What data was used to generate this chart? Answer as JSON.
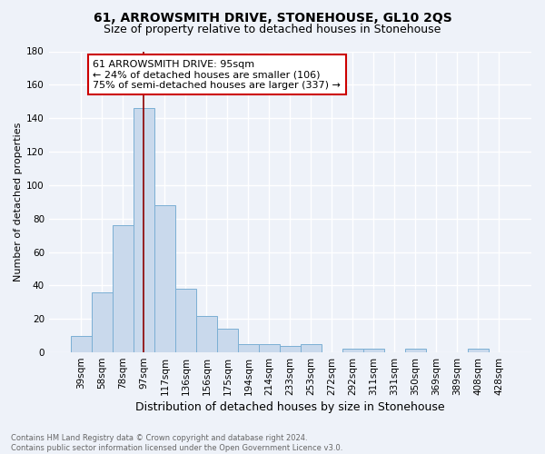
{
  "title": "61, ARROWSMITH DRIVE, STONEHOUSE, GL10 2QS",
  "subtitle": "Size of property relative to detached houses in Stonehouse",
  "xlabel": "Distribution of detached houses by size in Stonehouse",
  "ylabel": "Number of detached properties",
  "categories": [
    "39sqm",
    "58sqm",
    "78sqm",
    "97sqm",
    "117sqm",
    "136sqm",
    "156sqm",
    "175sqm",
    "194sqm",
    "214sqm",
    "233sqm",
    "253sqm",
    "272sqm",
    "292sqm",
    "311sqm",
    "331sqm",
    "350sqm",
    "369sqm",
    "389sqm",
    "408sqm",
    "428sqm"
  ],
  "values": [
    10,
    36,
    76,
    146,
    88,
    38,
    22,
    14,
    5,
    5,
    4,
    5,
    0,
    2,
    2,
    0,
    2,
    0,
    0,
    2,
    0
  ],
  "bar_color": "#c9d9ec",
  "bar_edge_color": "#7bafd4",
  "background_color": "#eef2f9",
  "grid_color": "#ffffff",
  "vline_x": 3.0,
  "vline_color": "#8b0000",
  "annotation_text": "61 ARROWSMITH DRIVE: 95sqm\n← 24% of detached houses are smaller (106)\n75% of semi-detached houses are larger (337) →",
  "annotation_box_color": "#ffffff",
  "annotation_box_edge_color": "#cc0000",
  "ylim": [
    0,
    180
  ],
  "yticks": [
    0,
    20,
    40,
    60,
    80,
    100,
    120,
    140,
    160,
    180
  ],
  "footnote": "Contains HM Land Registry data © Crown copyright and database right 2024.\nContains public sector information licensed under the Open Government Licence v3.0.",
  "title_fontsize": 10,
  "subtitle_fontsize": 9,
  "ylabel_fontsize": 8,
  "xlabel_fontsize": 9,
  "annotation_fontsize": 8,
  "tick_fontsize": 7.5,
  "footnote_fontsize": 6,
  "footnote_color": "#666666"
}
